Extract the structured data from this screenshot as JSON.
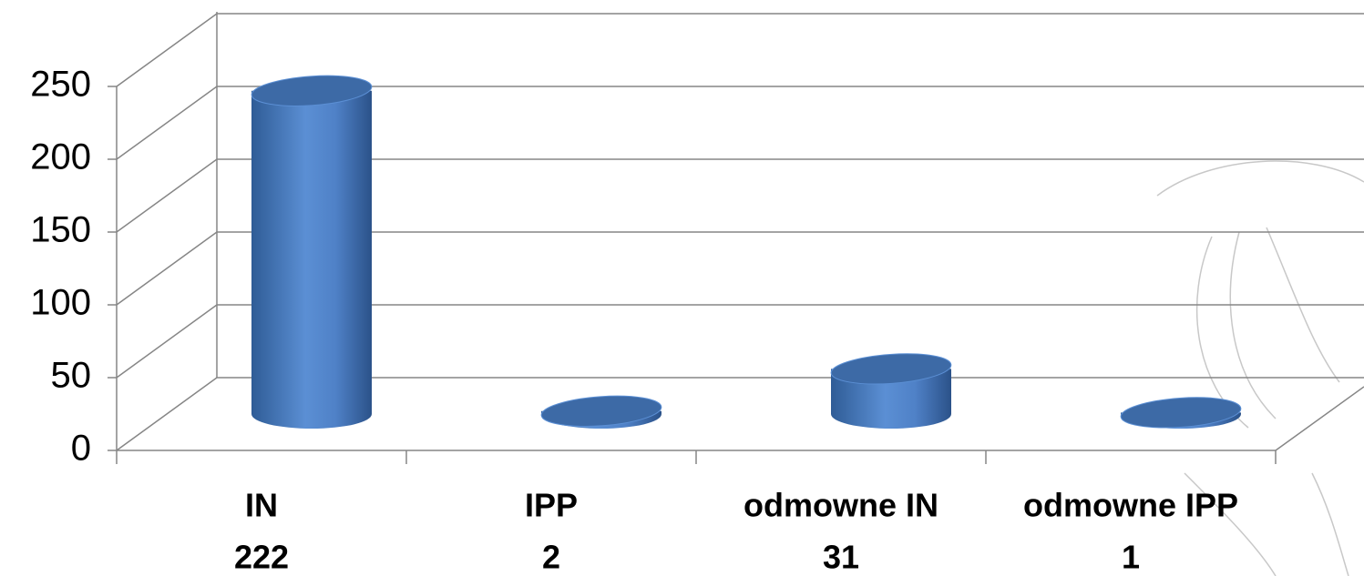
{
  "chart_data": {
    "type": "cylinder",
    "categories": [
      "IN",
      "IPP",
      "odmowne IN",
      "odmowne IPP"
    ],
    "values": [
      222,
      2,
      31,
      1
    ],
    "color": "#4f81bd",
    "ylim": [
      0,
      250
    ],
    "yticks": [
      0,
      50,
      100,
      150,
      200,
      250
    ],
    "grid": true
  }
}
